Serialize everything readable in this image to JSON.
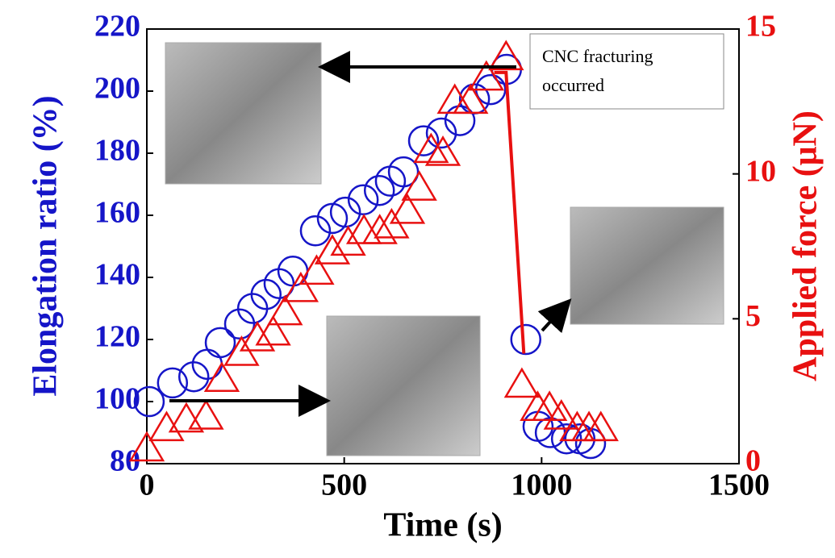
{
  "chart_data": {
    "type": "scatter",
    "xlabel": "Time (s)",
    "ylabel": "Elongation ratio (%)",
    "y2label": "Applied force (μN)",
    "annotation": [
      "CNC fracturing",
      "occurred"
    ],
    "xlim": [
      0,
      1500
    ],
    "xticks": [
      0,
      500,
      1000,
      1500
    ],
    "ylim": [
      80,
      220
    ],
    "yticks": [
      80,
      100,
      120,
      140,
      160,
      180,
      200,
      220
    ],
    "y2lim": [
      0,
      15
    ],
    "y2ticks": [
      0,
      5,
      10,
      15
    ],
    "series": [
      {
        "marker": "circle",
        "color": "#1515c8",
        "x": [
          6,
          65,
          119,
          153,
          186,
          235,
          268,
          302,
          335,
          370,
          427,
          470,
          503,
          548,
          589,
          617,
          650,
          701,
          746,
          793,
          830,
          871,
          911,
          960,
          991,
          1022,
          1063,
          1097,
          1124
        ],
        "values": [
          100,
          106,
          108,
          112,
          119,
          125,
          130,
          134.5,
          138,
          142,
          155,
          159,
          161,
          165,
          168,
          171,
          174,
          184,
          186.5,
          190.5,
          197.5,
          200.5,
          207,
          120,
          92,
          90,
          88,
          88,
          86.5
        ]
      },
      {
        "marker": "triangle",
        "color": "#e81010",
        "axis": "y2",
        "x": [
          0,
          50,
          100,
          150,
          190,
          240,
          280,
          320,
          350,
          390,
          430,
          470,
          510,
          550,
          590,
          620,
          660,
          690,
          720,
          750,
          780,
          820,
          860,
          910,
          950,
          990,
          1020,
          1050,
          1090,
          1120,
          1150
        ],
        "values": [
          0.5,
          1.2,
          1.5,
          1.6,
          2.9,
          3.8,
          4.3,
          4.5,
          5.2,
          6.0,
          6.6,
          7.3,
          7.6,
          8.0,
          8.0,
          8.2,
          8.7,
          9.5,
          10.8,
          10.7,
          12.5,
          12.5,
          13.3,
          14.0,
          2.7,
          1.9,
          1.9,
          1.6,
          1.2,
          1.2,
          1.2
        ]
      },
      {
        "marker": "line",
        "color": "#e81010",
        "axis": "y2",
        "x": [
          880,
          910,
          955
        ],
        "values": [
          13.5,
          13.5,
          3.8
        ]
      }
    ]
  }
}
